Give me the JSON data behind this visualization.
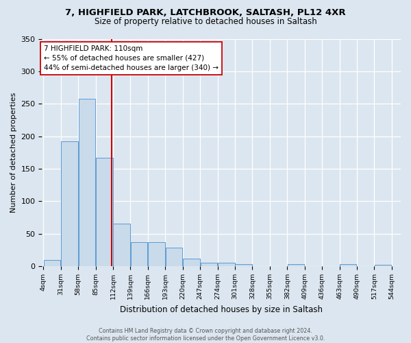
{
  "title_line1": "7, HIGHFIELD PARK, LATCHBROOK, SALTASH, PL12 4XR",
  "title_line2": "Size of property relative to detached houses in Saltash",
  "xlabel": "Distribution of detached houses by size in Saltash",
  "ylabel": "Number of detached properties",
  "bin_edges": [
    4,
    31,
    58,
    85,
    112,
    139,
    166,
    193,
    220,
    247,
    274,
    301,
    328,
    355,
    382,
    409,
    436,
    463,
    490,
    517,
    544
  ],
  "bar_heights": [
    10,
    192,
    258,
    167,
    65,
    37,
    37,
    29,
    12,
    5,
    5,
    3,
    0,
    0,
    3,
    0,
    0,
    3,
    0,
    2
  ],
  "bar_color": "#c9daea",
  "bar_edge_color": "#5b9bd5",
  "property_size": 110,
  "vline_color": "#cc0000",
  "annotation_line1": "7 HIGHFIELD PARK: 110sqm",
  "annotation_line2": "← 55% of detached houses are smaller (427)",
  "annotation_line3": "44% of semi-detached houses are larger (340) →",
  "annotation_box_color": "white",
  "annotation_box_edge_color": "#cc0000",
  "tick_labels": [
    "4sqm",
    "31sqm",
    "58sqm",
    "85sqm",
    "112sqm",
    "139sqm",
    "166sqm",
    "193sqm",
    "220sqm",
    "247sqm",
    "274sqm",
    "301sqm",
    "328sqm",
    "355sqm",
    "382sqm",
    "409sqm",
    "436sqm",
    "463sqm",
    "490sqm",
    "517sqm",
    "544sqm"
  ],
  "ylim": [
    0,
    350
  ],
  "yticks": [
    0,
    50,
    100,
    150,
    200,
    250,
    300,
    350
  ],
  "background_color": "#dce6f0",
  "plot_bg_color": "#dce6f0",
  "grid_color": "white",
  "footnote": "Contains HM Land Registry data © Crown copyright and database right 2024.\nContains public sector information licensed under the Open Government Licence v3.0."
}
